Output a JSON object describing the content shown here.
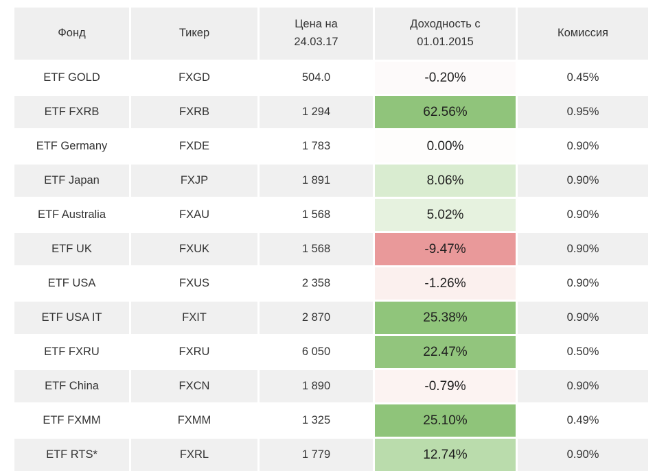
{
  "chart_data": {
    "type": "table",
    "title": "",
    "columns": [
      "Фонд",
      "Тикер",
      "Цена на 24.03.17",
      "Доходность с 01.01.2015",
      "Комиссия"
    ],
    "column_lines": [
      [
        "Фонд"
      ],
      [
        "Тикер"
      ],
      [
        "Цена на",
        "24.03.17"
      ],
      [
        "Доходность с",
        "01.01.2015"
      ],
      [
        "Комиссия"
      ]
    ],
    "layout_hints": {
      "header_bg": "#efefef",
      "row_alt_bg": "#f0f0f0",
      "cell_gap_color": "#ffffff",
      "positive_max_color": "#90c47b",
      "negative_max_color": "#e9999a",
      "striping": "even rows shaded"
    },
    "rows": [
      {
        "fund": "ETF GOLD",
        "ticker": "FXGD",
        "price": "504.0",
        "return_pct": -0.2,
        "return_text": "-0.20%",
        "return_bg": "#fdfafa",
        "fee": "0.45%"
      },
      {
        "fund": "ETF FXRB",
        "ticker": "FXRB",
        "price": "1 294",
        "return_pct": 62.56,
        "return_text": "62.56%",
        "return_bg": "#90c47b",
        "fee": "0.95%"
      },
      {
        "fund": "ETF Germany",
        "ticker": "FXDE",
        "price": "1 783",
        "return_pct": 0.0,
        "return_text": "0.00%",
        "return_bg": "#fefdfc",
        "fee": "0.90%"
      },
      {
        "fund": "ETF Japan",
        "ticker": "FXJP",
        "price": "1 891",
        "return_pct": 8.06,
        "return_text": "8.06%",
        "return_bg": "#d9ecd0",
        "fee": "0.90%"
      },
      {
        "fund": "ETF Australia",
        "ticker": "FXAU",
        "price": "1 568",
        "return_pct": 5.02,
        "return_text": "5.02%",
        "return_bg": "#e6f2df",
        "fee": "0.90%"
      },
      {
        "fund": "ETF UK",
        "ticker": "FXUK",
        "price": "1 568",
        "return_pct": -9.47,
        "return_text": "-9.47%",
        "return_bg": "#e9999a",
        "fee": "0.90%"
      },
      {
        "fund": "ETF USA",
        "ticker": "FXUS",
        "price": "2 358",
        "return_pct": -1.26,
        "return_text": "-1.26%",
        "return_bg": "#fbf0ee",
        "fee": "0.90%"
      },
      {
        "fund": "ETF USA IT",
        "ticker": "FXIT",
        "price": "2 870",
        "return_pct": 25.38,
        "return_text": "25.38%",
        "return_bg": "#90c57b",
        "fee": "0.90%"
      },
      {
        "fund": "ETF FXRU",
        "ticker": "FXRU",
        "price": "6 050",
        "return_pct": 22.47,
        "return_text": "22.47%",
        "return_bg": "#92c57d",
        "fee": "0.50%"
      },
      {
        "fund": "ETF China",
        "ticker": "FXCN",
        "price": "1 890",
        "return_pct": -0.79,
        "return_text": "-0.79%",
        "return_bg": "#fcf3f2",
        "fee": "0.90%"
      },
      {
        "fund": "ETF FXMM",
        "ticker": "FXMM",
        "price": "1 325",
        "return_pct": 25.1,
        "return_text": "25.10%",
        "return_bg": "#8fc47a",
        "fee": "0.49%"
      },
      {
        "fund": "ETF RTS*",
        "ticker": "FXRL",
        "price": "1 779",
        "return_pct": 12.74,
        "return_text": "12.74%",
        "return_bg": "#badcac",
        "fee": "0.90%"
      }
    ]
  }
}
